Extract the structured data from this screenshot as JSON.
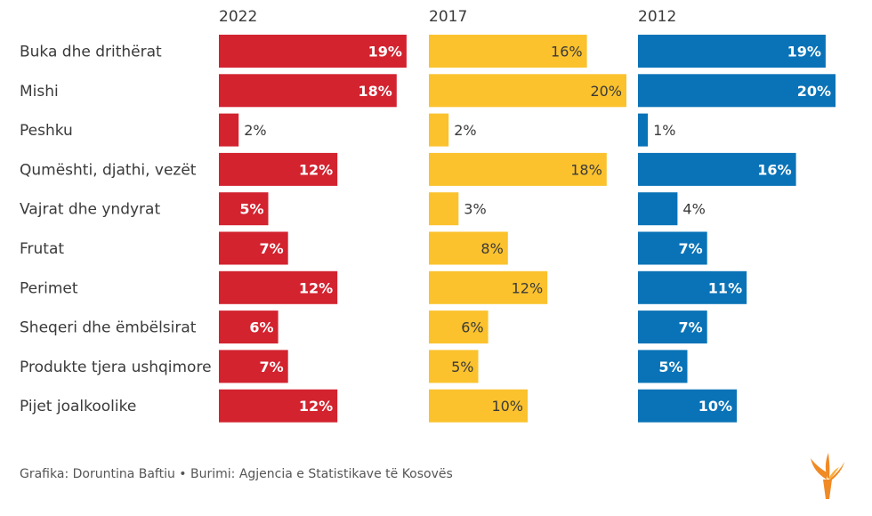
{
  "chart_data": {
    "type": "bar",
    "orientation": "horizontal",
    "categories": [
      "Buka dhe drithërat",
      "Mishi",
      "Peshku",
      "Qumështi, djathi, vezët",
      "Vajrat dhe yndyrat",
      "Frutat",
      "Perimet",
      "Sheqeri dhe ëmbëlsirat",
      "Produkte tjera ushqimore",
      "Pijet joalkoolike"
    ],
    "series": [
      {
        "name": "2022",
        "color": "#d2232f",
        "values": [
          19,
          18,
          2,
          12,
          5,
          7,
          12,
          6,
          7,
          12
        ]
      },
      {
        "name": "2017",
        "color": "#fbc22d",
        "values": [
          16,
          20,
          2,
          18,
          3,
          8,
          12,
          6,
          5,
          10
        ]
      },
      {
        "name": "2012",
        "color": "#0a73b7",
        "values": [
          19,
          20,
          1,
          16,
          4,
          7,
          11,
          7,
          5,
          10
        ]
      }
    ],
    "value_suffix": "%",
    "xlim": [
      0,
      20
    ]
  },
  "footer": {
    "credit": "Grafika: Doruntina Baftiu • Burimi: Agjencia e Statistikave të Kosovës"
  }
}
